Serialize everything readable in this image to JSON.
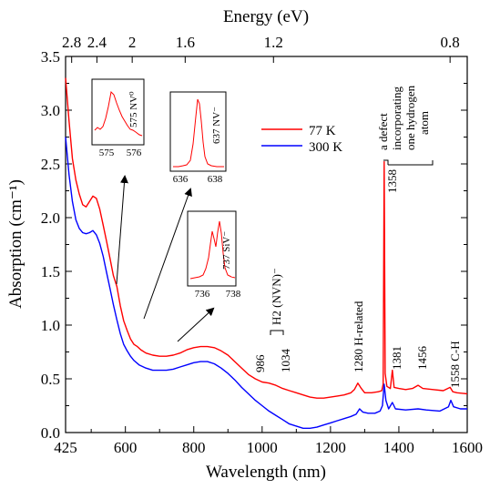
{
  "chart_data": {
    "type": "line",
    "xlabel": "Wavelength (nm)",
    "ylabel": "Absorption (cm⁻¹)",
    "top_axis_label": "Energy (eV)",
    "xlim": [
      425,
      1600
    ],
    "ylim": [
      0.0,
      3.5
    ],
    "x_ticks": [
      {
        "v": 425,
        "label": "425"
      },
      {
        "v": 600,
        "label": "600"
      },
      {
        "v": 800,
        "label": "800"
      },
      {
        "v": 1000,
        "label": "1000"
      },
      {
        "v": 1200,
        "label": "1200"
      },
      {
        "v": 1400,
        "label": "1400"
      },
      {
        "v": 1600,
        "label": "1600"
      }
    ],
    "y_ticks": [
      {
        "v": 0.0,
        "label": "0.0"
      },
      {
        "v": 0.5,
        "label": "0.5"
      },
      {
        "v": 1.0,
        "label": "1.0"
      },
      {
        "v": 1.5,
        "label": "1.5"
      },
      {
        "v": 2.0,
        "label": "2.0"
      },
      {
        "v": 2.5,
        "label": "2.5"
      },
      {
        "v": 3.0,
        "label": "3.0"
      },
      {
        "v": 3.5,
        "label": "3.5"
      }
    ],
    "top_ticks": [
      {
        "ev": 2.8,
        "label": "2.8"
      },
      {
        "ev": 2.4,
        "label": "2.4"
      },
      {
        "ev": 2.0,
        "label": "2"
      },
      {
        "ev": 1.6,
        "label": "1.6"
      },
      {
        "ev": 1.2,
        "label": "1.2"
      },
      {
        "ev": 0.8,
        "label": "0.8"
      }
    ],
    "series": [
      {
        "name": "77 K",
        "color": "#ff0000",
        "points": [
          [
            425,
            3.3
          ],
          [
            435,
            2.9
          ],
          [
            445,
            2.55
          ],
          [
            455,
            2.35
          ],
          [
            465,
            2.22
          ],
          [
            475,
            2.12
          ],
          [
            485,
            2.1
          ],
          [
            495,
            2.15
          ],
          [
            505,
            2.2
          ],
          [
            515,
            2.18
          ],
          [
            525,
            2.08
          ],
          [
            535,
            1.93
          ],
          [
            545,
            1.78
          ],
          [
            555,
            1.62
          ],
          [
            565,
            1.46
          ],
          [
            575,
            1.36
          ],
          [
            585,
            1.18
          ],
          [
            595,
            1.04
          ],
          [
            605,
            0.95
          ],
          [
            615,
            0.87
          ],
          [
            625,
            0.82
          ],
          [
            635,
            0.8
          ],
          [
            645,
            0.77
          ],
          [
            660,
            0.74
          ],
          [
            680,
            0.72
          ],
          [
            700,
            0.71
          ],
          [
            720,
            0.71
          ],
          [
            740,
            0.72
          ],
          [
            760,
            0.74
          ],
          [
            780,
            0.77
          ],
          [
            800,
            0.79
          ],
          [
            820,
            0.8
          ],
          [
            840,
            0.8
          ],
          [
            860,
            0.79
          ],
          [
            880,
            0.76
          ],
          [
            900,
            0.72
          ],
          [
            920,
            0.66
          ],
          [
            940,
            0.6
          ],
          [
            960,
            0.54
          ],
          [
            980,
            0.5
          ],
          [
            1000,
            0.47
          ],
          [
            1020,
            0.46
          ],
          [
            1040,
            0.44
          ],
          [
            1060,
            0.41
          ],
          [
            1080,
            0.39
          ],
          [
            1100,
            0.37
          ],
          [
            1120,
            0.35
          ],
          [
            1140,
            0.33
          ],
          [
            1160,
            0.32
          ],
          [
            1180,
            0.32
          ],
          [
            1200,
            0.33
          ],
          [
            1220,
            0.34
          ],
          [
            1240,
            0.35
          ],
          [
            1260,
            0.37
          ],
          [
            1270,
            0.4
          ],
          [
            1280,
            0.46
          ],
          [
            1290,
            0.41
          ],
          [
            1300,
            0.37
          ],
          [
            1320,
            0.37
          ],
          [
            1340,
            0.38
          ],
          [
            1350,
            0.39
          ],
          [
            1354,
            0.45
          ],
          [
            1357,
            2.52
          ],
          [
            1360,
            0.55
          ],
          [
            1365,
            0.43
          ],
          [
            1375,
            0.41
          ],
          [
            1381,
            0.58
          ],
          [
            1386,
            0.42
          ],
          [
            1400,
            0.41
          ],
          [
            1420,
            0.4
          ],
          [
            1440,
            0.41
          ],
          [
            1456,
            0.44
          ],
          [
            1470,
            0.41
          ],
          [
            1500,
            0.4
          ],
          [
            1530,
            0.39
          ],
          [
            1550,
            0.42
          ],
          [
            1558,
            0.38
          ],
          [
            1570,
            0.37
          ],
          [
            1600,
            0.36
          ]
        ]
      },
      {
        "name": "300 K",
        "color": "#0000ff",
        "points": [
          [
            425,
            2.75
          ],
          [
            435,
            2.4
          ],
          [
            445,
            2.15
          ],
          [
            455,
            1.98
          ],
          [
            465,
            1.9
          ],
          [
            475,
            1.86
          ],
          [
            485,
            1.85
          ],
          [
            495,
            1.86
          ],
          [
            505,
            1.88
          ],
          [
            515,
            1.84
          ],
          [
            525,
            1.76
          ],
          [
            535,
            1.64
          ],
          [
            545,
            1.49
          ],
          [
            555,
            1.34
          ],
          [
            565,
            1.19
          ],
          [
            575,
            1.05
          ],
          [
            585,
            0.92
          ],
          [
            595,
            0.82
          ],
          [
            605,
            0.76
          ],
          [
            615,
            0.71
          ],
          [
            625,
            0.67
          ],
          [
            640,
            0.63
          ],
          [
            660,
            0.6
          ],
          [
            680,
            0.58
          ],
          [
            700,
            0.58
          ],
          [
            720,
            0.58
          ],
          [
            740,
            0.59
          ],
          [
            760,
            0.61
          ],
          [
            780,
            0.63
          ],
          [
            800,
            0.65
          ],
          [
            820,
            0.66
          ],
          [
            840,
            0.66
          ],
          [
            860,
            0.64
          ],
          [
            880,
            0.6
          ],
          [
            900,
            0.55
          ],
          [
            920,
            0.49
          ],
          [
            940,
            0.42
          ],
          [
            960,
            0.36
          ],
          [
            980,
            0.3
          ],
          [
            1000,
            0.25
          ],
          [
            1020,
            0.2
          ],
          [
            1040,
            0.16
          ],
          [
            1060,
            0.12
          ],
          [
            1080,
            0.08
          ],
          [
            1100,
            0.06
          ],
          [
            1120,
            0.04
          ],
          [
            1140,
            0.04
          ],
          [
            1160,
            0.05
          ],
          [
            1180,
            0.07
          ],
          [
            1200,
            0.09
          ],
          [
            1220,
            0.11
          ],
          [
            1240,
            0.13
          ],
          [
            1260,
            0.15
          ],
          [
            1275,
            0.17
          ],
          [
            1285,
            0.22
          ],
          [
            1295,
            0.19
          ],
          [
            1310,
            0.18
          ],
          [
            1330,
            0.18
          ],
          [
            1345,
            0.2
          ],
          [
            1352,
            0.25
          ],
          [
            1357,
            0.45
          ],
          [
            1362,
            0.3
          ],
          [
            1370,
            0.22
          ],
          [
            1381,
            0.28
          ],
          [
            1390,
            0.22
          ],
          [
            1420,
            0.21
          ],
          [
            1456,
            0.22
          ],
          [
            1480,
            0.21
          ],
          [
            1520,
            0.2
          ],
          [
            1545,
            0.24
          ],
          [
            1552,
            0.3
          ],
          [
            1560,
            0.24
          ],
          [
            1580,
            0.22
          ],
          [
            1600,
            0.22
          ]
        ]
      }
    ],
    "legend": {
      "placement": "upper-middle",
      "entries": [
        "77 K",
        "300 K"
      ]
    },
    "annotations": {
      "peak_575": "575 NV⁰",
      "peak_637": "637 NV⁻",
      "peak_737": "737 SiV⁻",
      "peak_986": "986",
      "peak_1034": "1034",
      "peak_h2": "H2 (NVN)⁻",
      "peak_1280": "1280 H-related",
      "peak_1358": "1358",
      "peak_1381": "1381",
      "peak_1456": "1456",
      "peak_1558": "1558 C-H",
      "defect_line1": "a defect",
      "defect_line2": "incorporating",
      "defect_line3": "one hydrogen",
      "defect_line4": "atom"
    },
    "insets": [
      {
        "id": "inset575",
        "ticks": [
          "575",
          "576"
        ]
      },
      {
        "id": "inset637",
        "ticks": [
          "636",
          "638"
        ]
      },
      {
        "id": "inset737",
        "ticks": [
          "736",
          "738"
        ]
      }
    ]
  }
}
